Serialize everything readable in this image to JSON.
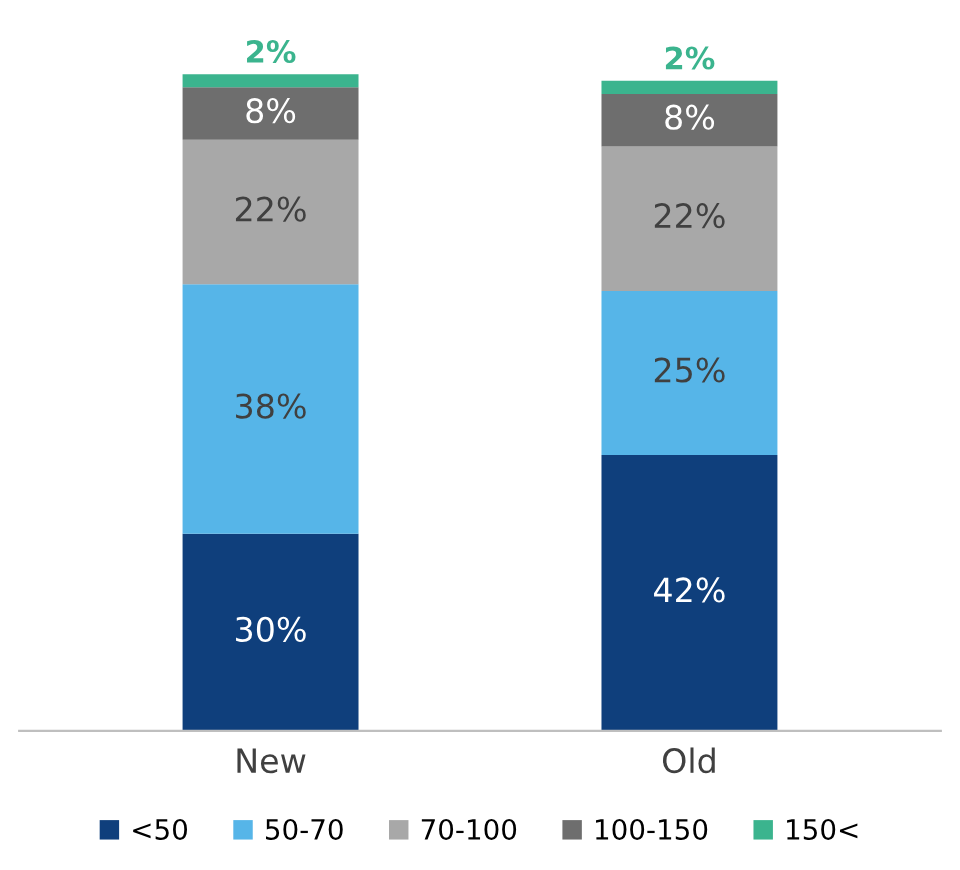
{
  "chart_data": {
    "type": "bar",
    "stacked": true,
    "categories": [
      "New",
      "Old"
    ],
    "series": [
      {
        "name": "<50",
        "color": "#0f3f7c",
        "values": [
          30,
          42
        ],
        "value_labels": [
          "30%",
          "42%"
        ]
      },
      {
        "name": "50-70",
        "color": "#56b5e8",
        "values": [
          38,
          25
        ],
        "value_labels": [
          "38%",
          "25%"
        ]
      },
      {
        "name": "70-100",
        "color": "#a8a8a8",
        "values": [
          22,
          22
        ],
        "value_labels": [
          "22%",
          "22%"
        ]
      },
      {
        "name": "100-150",
        "color": "#6e6e6e",
        "values": [
          8,
          8
        ],
        "value_labels": [
          "8%",
          "8%"
        ]
      },
      {
        "name": "150<",
        "color": "#3bb48e",
        "values": [
          2,
          2
        ],
        "value_labels": [
          "2%",
          "2%"
        ]
      }
    ],
    "legend": "bottom",
    "grid": false
  }
}
